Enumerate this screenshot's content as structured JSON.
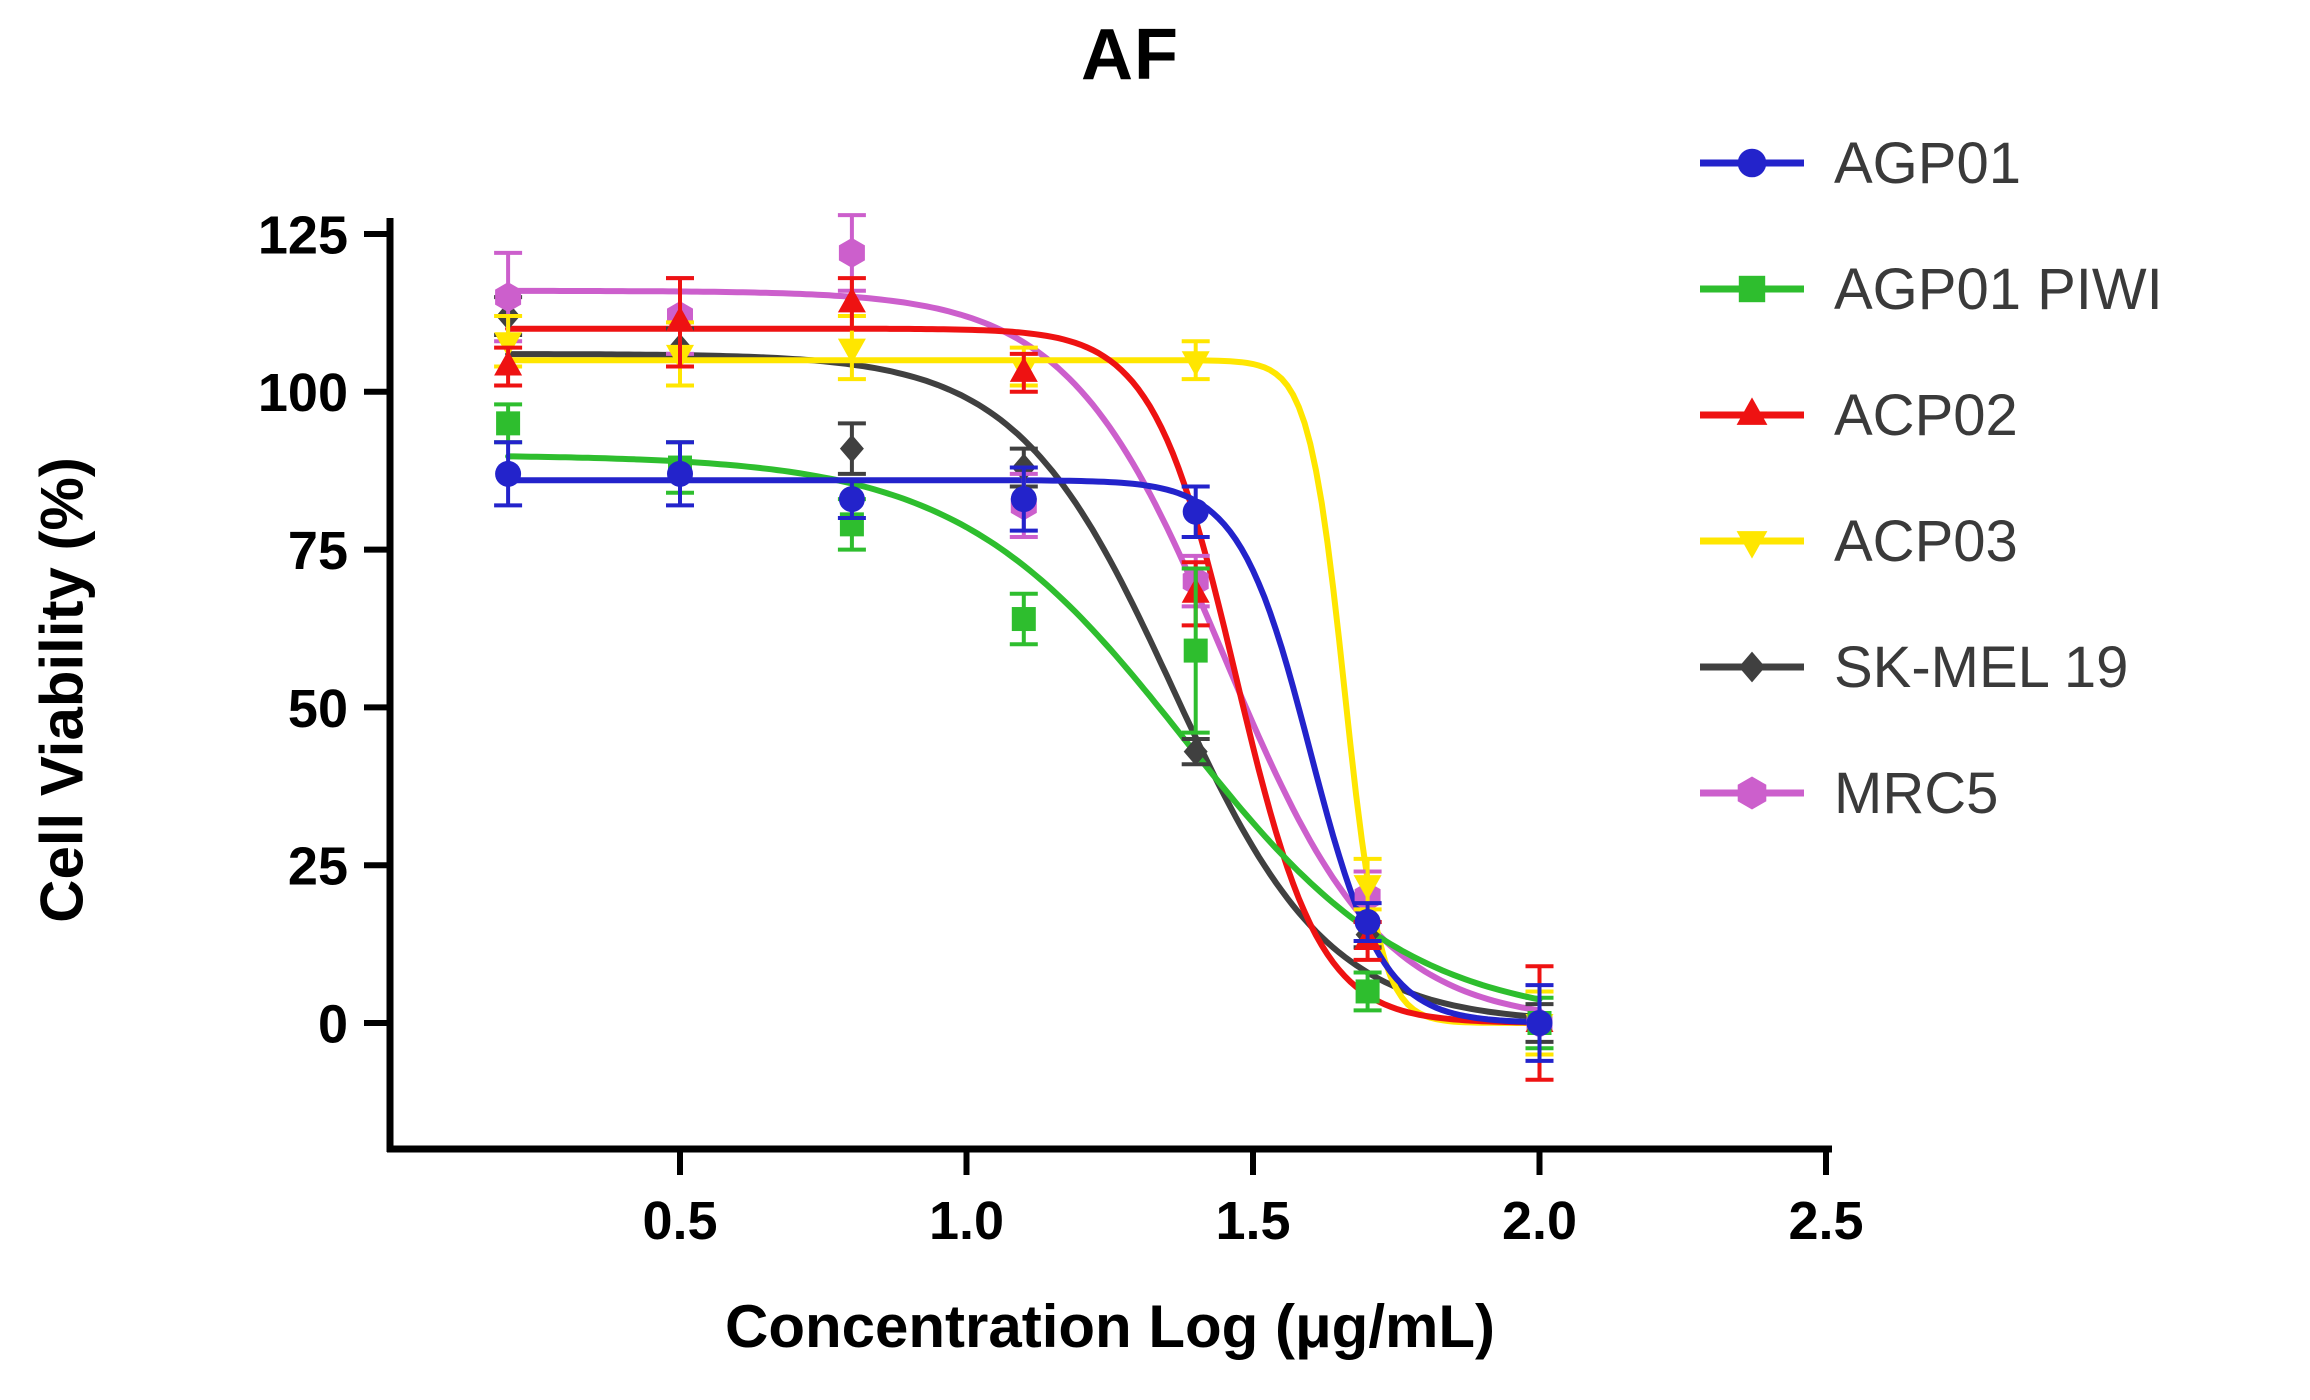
{
  "title": "AF",
  "chart_data": {
    "type": "scatter",
    "title": "AF",
    "xlabel": "Concentration Log (μg/mL)",
    "ylabel": "Cell Viability (%)",
    "grid": false,
    "legend_position": "right",
    "xlim": [
      0.05,
      2.55
    ],
    "ylim": [
      0,
      125
    ],
    "x_ticks": [
      0.5,
      1.0,
      1.5,
      2.0,
      2.5
    ],
    "x_tick_labels": [
      "0.5",
      "1.0",
      "1.5",
      "2.0",
      "2.5"
    ],
    "y_ticks": [
      0,
      25,
      50,
      75,
      100,
      125
    ],
    "y_tick_labels": [
      "0",
      "25",
      "50",
      "75",
      "100",
      "125"
    ],
    "x": [
      0.2,
      0.5,
      0.8,
      1.1,
      1.4,
      1.7,
      2.0
    ],
    "series": [
      {
        "name": "AGP01",
        "color": "#2323CB",
        "marker": "circle",
        "values": [
          87,
          87,
          83,
          83,
          81,
          16,
          0
        ],
        "errors": [
          5,
          5,
          3,
          5,
          4,
          3,
          6
        ],
        "fit": {
          "top": 86,
          "bottom": 0,
          "mid": 1.6,
          "hill": 7
        }
      },
      {
        "name": "AGP01 PIWI",
        "color": "#2EBE2E",
        "marker": "square",
        "values": [
          95,
          88,
          79,
          64,
          59,
          5,
          0
        ],
        "errors": [
          3,
          4,
          4,
          4,
          13,
          3,
          4
        ],
        "fit": {
          "top": 90,
          "bottom": 0,
          "mid": 1.38,
          "hill": 2.2
        }
      },
      {
        "name": "ACP02",
        "color": "#EE1212",
        "marker": "triangle-up",
        "values": [
          104,
          111,
          114,
          103,
          68,
          13,
          0
        ],
        "errors": [
          3,
          7,
          4,
          3,
          5,
          3,
          9
        ],
        "fit": {
          "top": 110,
          "bottom": 0,
          "mid": 1.47,
          "hill": 6
        }
      },
      {
        "name": "ACP03",
        "color": "#FFE600",
        "marker": "triangle-down",
        "values": [
          108,
          106,
          107,
          104,
          105,
          22,
          0
        ],
        "errors": [
          4,
          5,
          5,
          3,
          3,
          4,
          5
        ],
        "fit": {
          "top": 105,
          "bottom": 0,
          "mid": 1.66,
          "hill": 14
        }
      },
      {
        "name": "SK-MEL 19",
        "color": "#404040",
        "marker": "diamond",
        "values": [
          112,
          107,
          91,
          88,
          43,
          14,
          0
        ],
        "errors": [
          3,
          3,
          4,
          3,
          2,
          2,
          3
        ],
        "fit": {
          "top": 106,
          "bottom": 0,
          "mid": 1.36,
          "hill": 3.2
        }
      },
      {
        "name": "MRC5",
        "color": "#CC5FCC",
        "marker": "hexagon",
        "values": [
          115,
          112,
          122,
          82,
          70,
          20,
          0
        ],
        "errors": [
          7,
          6,
          6,
          5,
          4,
          4,
          5
        ],
        "fit": {
          "top": 116,
          "bottom": 0,
          "mid": 1.45,
          "hill": 3.2
        }
      }
    ]
  }
}
